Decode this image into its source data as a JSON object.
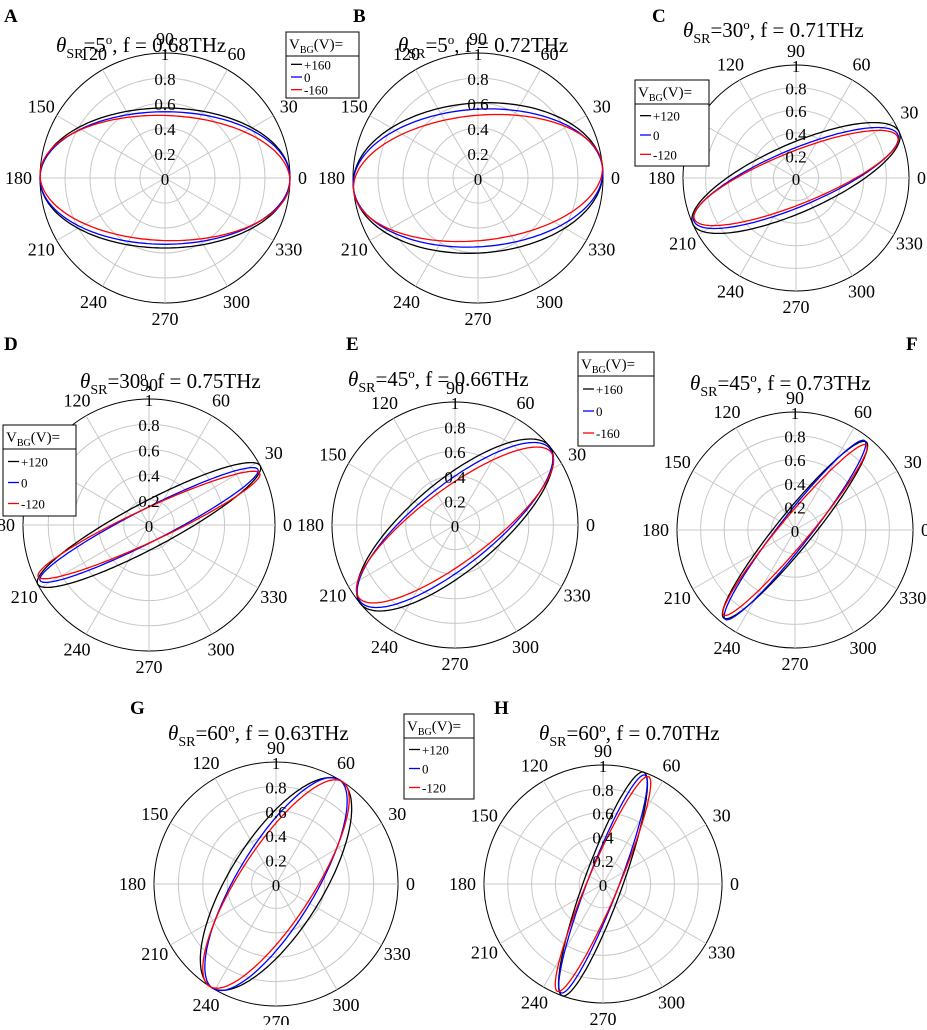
{
  "chart_data": [
    {
      "panel": "A",
      "type": "polar",
      "title_pre": "θ",
      "title_sub": "SR",
      "title_mid": "=5",
      "title_sup": "o",
      "title_post": ", f = 0.68THz",
      "angle_labels": [
        "0",
        "30",
        "60",
        "90",
        "120",
        "150",
        "180",
        "210",
        "240",
        "270",
        "300",
        "330"
      ],
      "radial_ticks": [
        "0",
        "0.2",
        "0.4",
        "0.6",
        "0.8",
        "1"
      ],
      "rlim": [
        0,
        1
      ],
      "grid": true,
      "legend": {
        "title_pre": "V",
        "title_sub": "BG",
        "title_post": "(V)=",
        "entries": [
          "+160",
          "0",
          "-160"
        ]
      },
      "series": [
        {
          "name": "+160",
          "color": "#000000",
          "major_axis_deg": 0,
          "major": 1.0,
          "minor": 0.56
        },
        {
          "name": "0",
          "color": "#0000ff",
          "major_axis_deg": 0,
          "major": 1.0,
          "minor": 0.53
        },
        {
          "name": "-160",
          "color": "#ff0000",
          "major_axis_deg": -2,
          "major": 1.0,
          "minor": 0.5
        }
      ]
    },
    {
      "panel": "B",
      "type": "polar",
      "title_pre": "θ",
      "title_sub": "SR",
      "title_mid": "=5",
      "title_sup": "o",
      "title_post": ", f = 0.72THz",
      "angle_labels": [
        "0",
        "30",
        "60",
        "90",
        "120",
        "150",
        "180",
        "210",
        "240",
        "270",
        "300",
        "330"
      ],
      "radial_ticks": [
        "0",
        "0.2",
        "0.4",
        "0.6",
        "0.8",
        "1"
      ],
      "rlim": [
        0,
        1
      ],
      "grid": true,
      "legend": null,
      "series": [
        {
          "name": "+160",
          "color": "#000000",
          "major_axis_deg": 4,
          "major": 1.0,
          "minor": 0.6
        },
        {
          "name": "0",
          "color": "#0000ff",
          "major_axis_deg": 4,
          "major": 1.0,
          "minor": 0.55
        },
        {
          "name": "-160",
          "color": "#ff0000",
          "major_axis_deg": 6,
          "major": 1.0,
          "minor": 0.5
        }
      ]
    },
    {
      "panel": "C",
      "type": "polar",
      "title_pre": "θ",
      "title_sub": "SR",
      "title_mid": "=30",
      "title_sup": "o",
      "title_post": ", f = 0.71THz",
      "angle_labels": [
        "0",
        "30",
        "60",
        "90",
        "120",
        "150",
        "180",
        "210",
        "240",
        "270",
        "300",
        "330"
      ],
      "radial_ticks": [
        "0",
        "0.2",
        "0.4",
        "0.6",
        "0.8",
        "1"
      ],
      "rlim": [
        0,
        1
      ],
      "grid": true,
      "legend": {
        "title_pre": "V",
        "title_sub": "BG",
        "title_post": "(V)=",
        "entries": [
          "+120",
          "0",
          "-120"
        ]
      },
      "series": [
        {
          "name": "+120",
          "color": "#000000",
          "major_axis_deg": 24,
          "major": 1.0,
          "minor": 0.3
        },
        {
          "name": "0",
          "color": "#0000ff",
          "major_axis_deg": 23,
          "major": 0.98,
          "minor": 0.25
        },
        {
          "name": "-120",
          "color": "#ff0000",
          "major_axis_deg": 22,
          "major": 0.97,
          "minor": 0.23
        }
      ]
    },
    {
      "panel": "D",
      "type": "polar",
      "title_pre": "θ",
      "title_sub": "SR",
      "title_mid": "=30",
      "title_sup": "o",
      "title_post": ", f = 0.75THz",
      "angle_labels": [
        "0",
        "30",
        "60",
        "90",
        "120",
        "150",
        "180",
        "210",
        "240",
        "270",
        "300",
        "330"
      ],
      "radial_ticks": [
        "0",
        "0.2",
        "0.4",
        "0.6",
        "0.8",
        "1"
      ],
      "rlim": [
        0,
        1
      ],
      "grid": true,
      "legend": {
        "title_pre": "V",
        "title_sub": "BG",
        "title_post": "(V)=",
        "entries": [
          "+120",
          "0",
          "-120"
        ]
      },
      "series": [
        {
          "name": "+120",
          "color": "#000000",
          "major_axis_deg": 28,
          "major": 1.0,
          "minor": 0.18
        },
        {
          "name": "0",
          "color": "#0000ff",
          "major_axis_deg": 27,
          "major": 0.97,
          "minor": 0.13
        },
        {
          "name": "-120",
          "color": "#ff0000",
          "major_axis_deg": 25,
          "major": 0.97,
          "minor": 0.13
        }
      ]
    },
    {
      "panel": "E",
      "type": "polar",
      "title_pre": "θ",
      "title_sub": "SR",
      "title_mid": "=45",
      "title_sup": "o",
      "title_post": ", f = 0.66THz",
      "angle_labels": [
        "0",
        "30",
        "60",
        "90",
        "120",
        "150",
        "180",
        "210",
        "240",
        "270",
        "300",
        "330"
      ],
      "radial_ticks": [
        "0",
        "0.2",
        "0.4",
        "0.6",
        "0.8",
        "1"
      ],
      "rlim": [
        0,
        1
      ],
      "grid": true,
      "legend": {
        "title_pre": "V",
        "title_sub": "BG",
        "title_post": "(V)=",
        "entries": [
          "+160",
          "0",
          "-160"
        ]
      },
      "series": [
        {
          "name": "+160",
          "color": "#000000",
          "major_axis_deg": 40,
          "major": 1.0,
          "minor": 0.36
        },
        {
          "name": "0",
          "color": "#0000ff",
          "major_axis_deg": 39,
          "major": 0.99,
          "minor": 0.32
        },
        {
          "name": "-160",
          "color": "#ff0000",
          "major_axis_deg": 37,
          "major": 0.98,
          "minor": 0.29
        }
      ]
    },
    {
      "panel": "F",
      "type": "polar",
      "title_pre": "θ",
      "title_sub": "SR",
      "title_mid": "=45",
      "title_sup": "o",
      "title_post": ", f = 0.73THz",
      "angle_labels": [
        "0",
        "30",
        "60",
        "90",
        "120",
        "150",
        "180",
        "210",
        "240",
        "270",
        "300",
        "330"
      ],
      "radial_ticks": [
        "0",
        "0.2",
        "0.4",
        "0.6",
        "0.8",
        "1"
      ],
      "rlim": [
        0,
        1
      ],
      "grid": true,
      "legend": null,
      "series": [
        {
          "name": "+160",
          "color": "#000000",
          "major_axis_deg": 51,
          "major": 0.96,
          "minor": 0.15
        },
        {
          "name": "0",
          "color": "#0000ff",
          "major_axis_deg": 52,
          "major": 0.96,
          "minor": 0.13
        },
        {
          "name": "-160",
          "color": "#ff0000",
          "major_axis_deg": 50,
          "major": 0.94,
          "minor": 0.12
        }
      ]
    },
    {
      "panel": "G",
      "type": "polar",
      "title_pre": "θ",
      "title_sub": "SR",
      "title_mid": "=60",
      "title_sup": "o",
      "title_post": ", f = 0.63THz",
      "angle_labels": [
        "0",
        "30",
        "60",
        "90",
        "120",
        "150",
        "180",
        "210",
        "240",
        "270",
        "300",
        "330"
      ],
      "radial_ticks": [
        "0",
        "0.2",
        "0.4",
        "0.6",
        "0.8",
        "1"
      ],
      "rlim": [
        0,
        1
      ],
      "grid": true,
      "legend": {
        "title_pre": "V",
        "title_sub": "BG",
        "title_post": "(V)=",
        "entries": [
          "+120",
          "0",
          "-120"
        ]
      },
      "series": [
        {
          "name": "+120",
          "color": "#000000",
          "major_axis_deg": 58,
          "major": 1.0,
          "minor": 0.38
        },
        {
          "name": "0",
          "color": "#0000ff",
          "major_axis_deg": 59,
          "major": 1.0,
          "minor": 0.32
        },
        {
          "name": "-120",
          "color": "#ff0000",
          "major_axis_deg": 57,
          "major": 1.0,
          "minor": 0.3
        }
      ]
    },
    {
      "panel": "H",
      "type": "polar",
      "title_pre": "θ",
      "title_sub": "SR",
      "title_mid": "=60",
      "title_sup": "o",
      "title_post": ", f = 0.70THz",
      "angle_labels": [
        "0",
        "30",
        "60",
        "90",
        "120",
        "150",
        "180",
        "210",
        "240",
        "270",
        "300",
        "330"
      ],
      "radial_ticks": [
        "0",
        "0.2",
        "0.4",
        "0.6",
        "0.8",
        "1"
      ],
      "rlim": [
        0,
        1
      ],
      "grid": true,
      "legend": null,
      "series": [
        {
          "name": "+120",
          "color": "#000000",
          "major_axis_deg": 70,
          "major": 1.0,
          "minor": 0.16
        },
        {
          "name": "0",
          "color": "#0000ff",
          "major_axis_deg": 69,
          "major": 0.98,
          "minor": 0.13
        },
        {
          "name": "-120",
          "color": "#ff0000",
          "major_axis_deg": 67,
          "major": 0.98,
          "minor": 0.13
        }
      ]
    }
  ]
}
